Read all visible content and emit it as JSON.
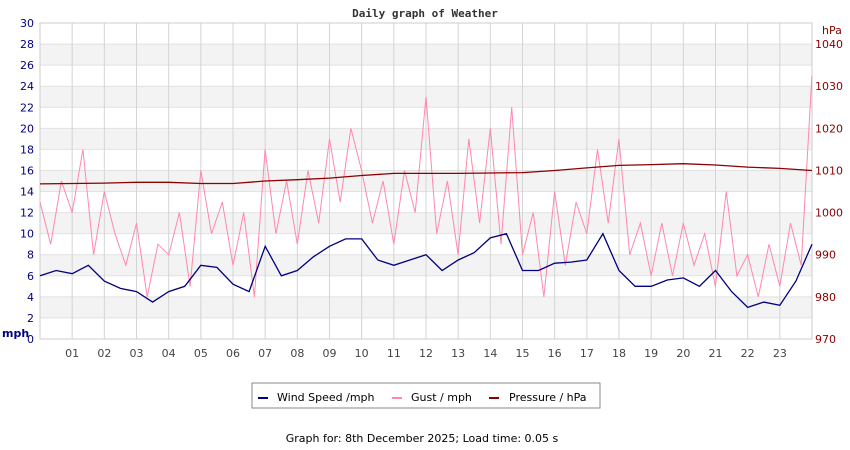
{
  "chart_data": {
    "type": "line",
    "title": "Daily graph of Weather",
    "x_tick_labels": [
      "01",
      "02",
      "03",
      "04",
      "05",
      "06",
      "07",
      "08",
      "09",
      "10",
      "11",
      "12",
      "13",
      "14",
      "15",
      "16",
      "17",
      "18",
      "19",
      "20",
      "21",
      "22",
      "23"
    ],
    "x_range_hours": [
      0,
      24
    ],
    "left_axis": {
      "label": "mph",
      "ylim": [
        0,
        30
      ],
      "ticks": [
        0,
        2,
        4,
        6,
        8,
        10,
        12,
        14,
        16,
        18,
        20,
        22,
        24,
        26,
        28,
        30
      ],
      "color": "#000080"
    },
    "right_axis": {
      "label": "hPa",
      "ylim": [
        970,
        1045
      ],
      "ticks": [
        970,
        980,
        990,
        1000,
        1010,
        1020,
        1030,
        1040
      ],
      "color": "#8b0000"
    },
    "grid": true,
    "legend_placement": "bottom",
    "series": [
      {
        "name": "Wind Speed /mph",
        "axis": "left",
        "color": "#000080",
        "x_step_hours": 0.5,
        "values": [
          6,
          6.5,
          6.2,
          7,
          5.5,
          4.8,
          4.5,
          3.5,
          4.5,
          5,
          7,
          6.8,
          5.2,
          4.5,
          8.8,
          6,
          6.5,
          7.8,
          8.8,
          9.5,
          9.5,
          7.5,
          7,
          7.5,
          8,
          6.5,
          7.5,
          8.2,
          9.6,
          10,
          6.5,
          6.5,
          7.2,
          7.3,
          7.5,
          10,
          6.5,
          5,
          5,
          5.6,
          5.8,
          5,
          6.5,
          4.5,
          3,
          3.5,
          3.2,
          5.5,
          9
        ]
      },
      {
        "name": "Gust / mph",
        "axis": "left",
        "color": "#ff88aa",
        "x_step_hours": 0.3333,
        "values": [
          13,
          9,
          15,
          12,
          18,
          8,
          14,
          10,
          7,
          11,
          4,
          9,
          8,
          12,
          5,
          16,
          10,
          13,
          7,
          12,
          4,
          18,
          10,
          15,
          9,
          16,
          11,
          19,
          13,
          20,
          16,
          11,
          15,
          9,
          16,
          12,
          23,
          10,
          15,
          8,
          19,
          11,
          20,
          9,
          22,
          8,
          12,
          4,
          14,
          7,
          13,
          10,
          18,
          11,
          19,
          8,
          11,
          6,
          11,
          6,
          11,
          7,
          10,
          5,
          14,
          6,
          8,
          4,
          9,
          5,
          11,
          7,
          25
        ]
      },
      {
        "name": "Pressure / hPa",
        "axis": "right",
        "color": "#8b0000",
        "x_step_hours": 1,
        "values": [
          1006.8,
          1006.9,
          1007.0,
          1007.2,
          1007.2,
          1006.9,
          1006.9,
          1007.5,
          1007.8,
          1008.2,
          1008.8,
          1009.3,
          1009.3,
          1009.3,
          1009.4,
          1009.5,
          1010.0,
          1010.6,
          1011.2,
          1011.4,
          1011.6,
          1011.3,
          1010.8,
          1010.5,
          1010.0
        ]
      }
    ]
  },
  "footer": "Graph for: 8th December 2025; Load time: 0.05 s"
}
